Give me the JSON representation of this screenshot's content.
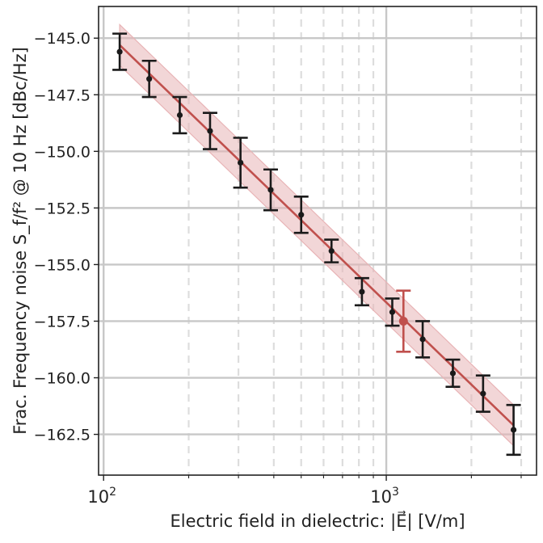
{
  "chart_data": {
    "type": "scatter",
    "xlabel": "Electric field in dielectric: |E⃗| [V/m]",
    "ylabel": "Frac. Frequency noise S_f/f² @ 10 Hz [dBc/Hz]",
    "xscale": "log",
    "xlim": [
      96,
      3400
    ],
    "ylim": [
      -164.3,
      -143.6
    ],
    "x_tick_labels": [
      {
        "value": 100,
        "base": "10",
        "exp": "2"
      },
      {
        "value": 1000,
        "base": "10",
        "exp": "3"
      }
    ],
    "y_ticks": [
      -145.0,
      -147.5,
      -150.0,
      -152.5,
      -155.0,
      -157.5,
      -160.0,
      -162.5
    ],
    "y_tick_labels": [
      "−145.0",
      "−147.5",
      "−150.0",
      "−152.5",
      "−155.0",
      "−157.5",
      "−160.0",
      "−162.5"
    ],
    "grid": true,
    "series": [
      {
        "style": "errorbar",
        "color": "#1a1a1a",
        "points": [
          {
            "x": 114,
            "y": -145.6,
            "err": 0.8
          },
          {
            "x": 145,
            "y": -146.8,
            "err": 0.8
          },
          {
            "x": 186,
            "y": -148.4,
            "err": 0.8
          },
          {
            "x": 238,
            "y": -149.1,
            "err": 0.8
          },
          {
            "x": 305,
            "y": -150.5,
            "err": 1.1
          },
          {
            "x": 390,
            "y": -151.7,
            "err": 0.9
          },
          {
            "x": 500,
            "y": -152.8,
            "err": 0.8
          },
          {
            "x": 640,
            "y": -154.4,
            "err": 0.5
          },
          {
            "x": 820,
            "y": -156.2,
            "err": 0.6
          },
          {
            "x": 1050,
            "y": -157.1,
            "err": 0.6
          },
          {
            "x": 1345,
            "y": -158.3,
            "err": 0.8
          },
          {
            "x": 1720,
            "y": -159.8,
            "err": 0.6
          },
          {
            "x": 2200,
            "y": -160.7,
            "err": 0.8
          },
          {
            "x": 2820,
            "y": -162.3,
            "err": 1.1
          }
        ]
      },
      {
        "style": "errorbar-highlight",
        "color": "#c0504d",
        "points": [
          {
            "x": 1150,
            "y": -157.5,
            "err": 1.35
          }
        ]
      }
    ],
    "fit": {
      "color": "#c0504d",
      "band_color": "#e8b4b6",
      "x": [
        114,
        2820
      ],
      "y": [
        -145.3,
        -162.1
      ],
      "band_halfwidth": 0.9
    }
  }
}
